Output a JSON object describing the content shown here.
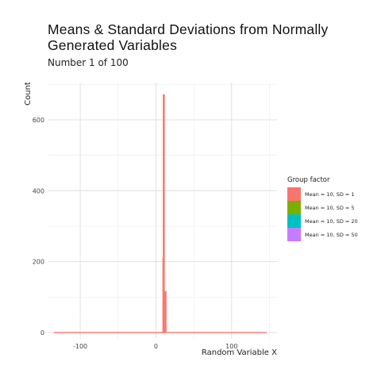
{
  "chart_data": {
    "type": "histogram",
    "title": "Means & Standard Deviations from Normally Generated Variables",
    "subtitle": "Number 1 of 100",
    "xlabel": "Random Variable X",
    "ylabel": "Count",
    "xlim": [
      -142,
      160
    ],
    "ylim": [
      -18,
      705
    ],
    "x_ticks": [
      -100,
      0,
      100
    ],
    "y_ticks": [
      0,
      200,
      400,
      600
    ],
    "grid": true,
    "legend": {
      "title": "Group factor",
      "position": "right",
      "entries": [
        {
          "label": "Mean = 10, SD = 1",
          "color": "#F8766D"
        },
        {
          "label": "Mean = 10, SD = 5",
          "color": "#7CAE00"
        },
        {
          "label": "Mean = 10, SD = 20",
          "color": "#00BFC4"
        },
        {
          "label": "Mean = 10, SD = 50",
          "color": "#C77CFF"
        }
      ]
    },
    "series": [
      {
        "name": "Mean = 10, SD = 1",
        "color": "#F8766D",
        "bins": [
          {
            "x0": 6,
            "x1": 8.6,
            "count": 2
          },
          {
            "x0": 8.6,
            "x1": 9.1,
            "count": 210
          },
          {
            "x0": 9.1,
            "x1": 11.7,
            "count": 672
          },
          {
            "x0": 11.7,
            "x1": 14,
            "count": 117
          }
        ],
        "baseline_range": [
          -135,
          166
        ]
      }
    ]
  }
}
